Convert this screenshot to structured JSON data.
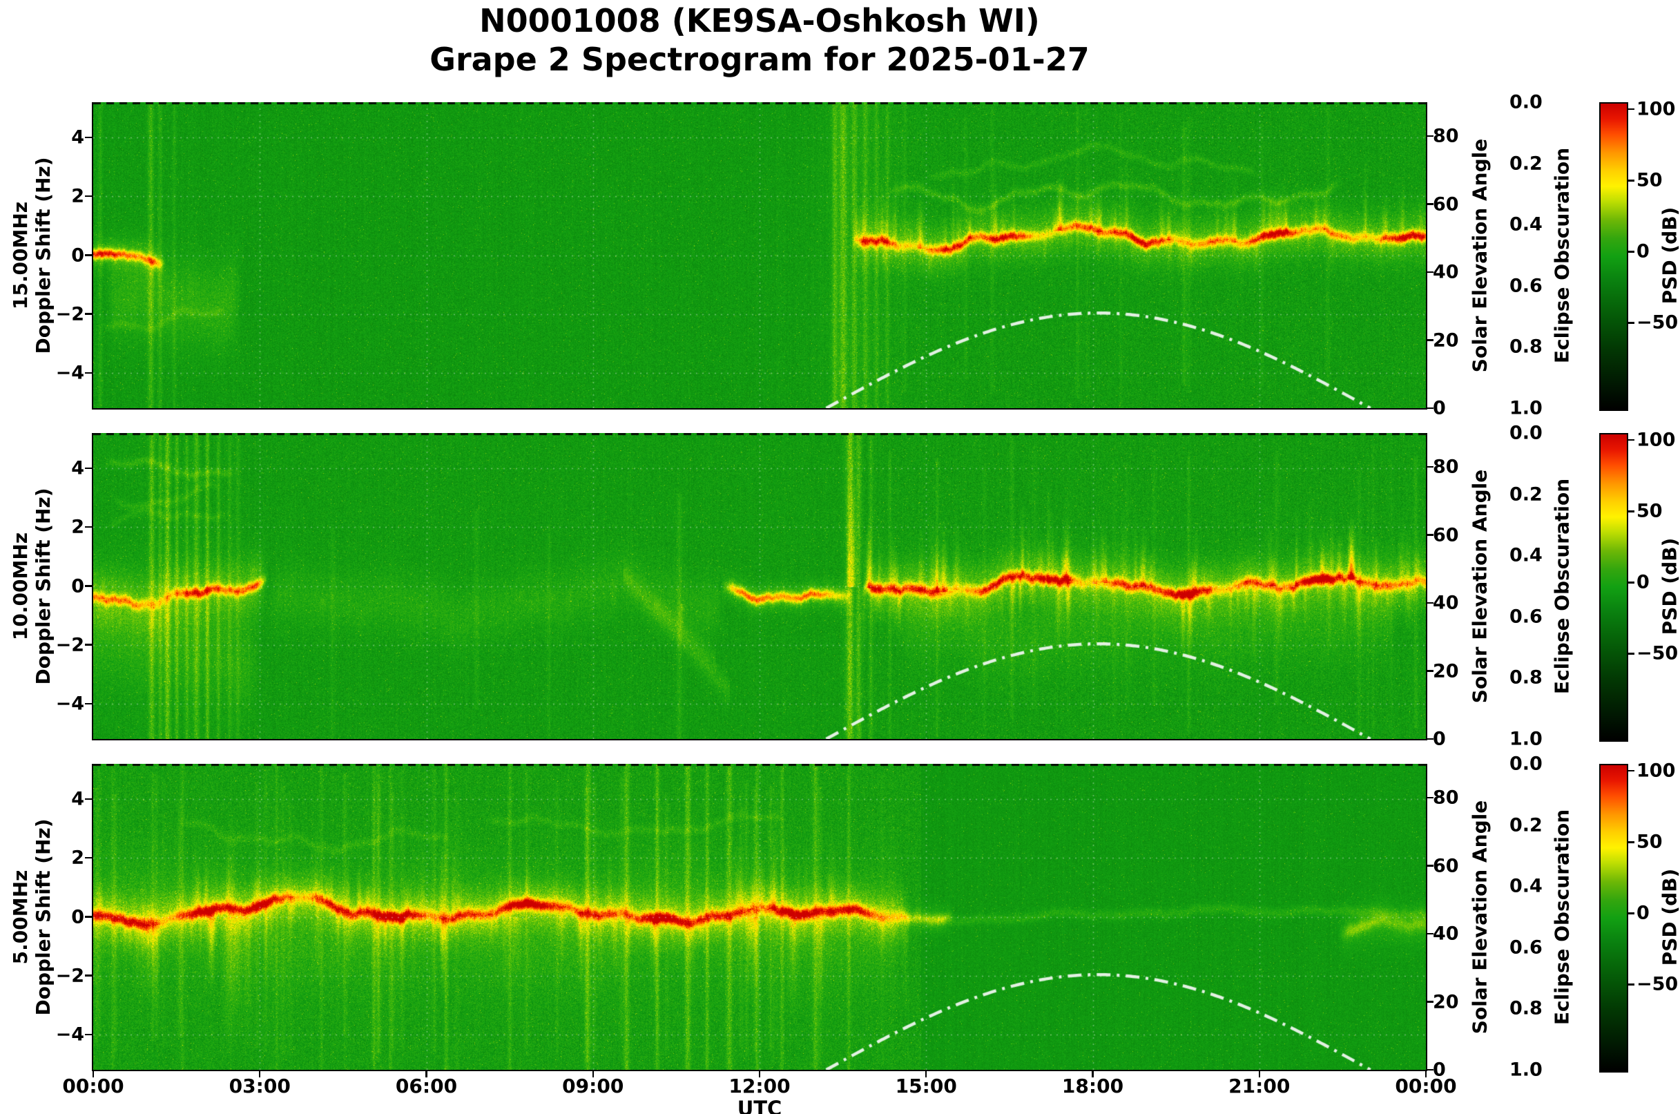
{
  "figure": {
    "title_line1": "N0001008 (KE9SA-Oshkosh WI)",
    "title_line2": "Grape 2 Spectrogram for 2025-01-27"
  },
  "chart_data": {
    "type": "heatmap",
    "title": "N0001008 (KE9SA-Oshkosh WI) Grape 2 Spectrogram for 2025-01-27",
    "station_node": "N0001008",
    "callsign": "KE9SA",
    "location": "Oshkosh WI",
    "date": "2025-01-27",
    "x_axis": {
      "label": "UTC",
      "tick_hours": [
        0,
        3,
        6,
        9,
        12,
        15,
        18,
        21,
        24
      ],
      "tick_labels": [
        "00:00",
        "03:00",
        "06:00",
        "09:00",
        "12:00",
        "15:00",
        "18:00",
        "21:00",
        "00:00"
      ],
      "range_hours": [
        0,
        24
      ]
    },
    "doppler_axis": {
      "label": "Doppler Shift (Hz)",
      "tick_values": [
        4,
        2,
        0,
        -2,
        -4
      ],
      "tick_labels": [
        "4",
        "2",
        "0",
        "−2",
        "−4"
      ],
      "range": [
        -5.2,
        5.2
      ]
    },
    "solar_axis": {
      "label": "Solar Elevation Angle",
      "tick_values": [
        0,
        20,
        40,
        60,
        80
      ],
      "tick_labels": [
        "0",
        "20",
        "40",
        "60",
        "80"
      ],
      "range": [
        0,
        90
      ]
    },
    "eclipse_axis": {
      "label": "Eclipse Obscuration",
      "tick_values": [
        0,
        0.2,
        0.4,
        0.6,
        0.8,
        1.0
      ],
      "tick_labels": [
        "0.0",
        "0.2",
        "0.4",
        "0.6",
        "0.8",
        "1.0"
      ],
      "range": [
        0,
        1
      ]
    },
    "colorbar": {
      "label": "PSD (dB)",
      "tick_values": [
        100,
        50,
        0,
        -50
      ],
      "tick_labels": [
        "100",
        "50",
        "0",
        "−50"
      ],
      "vmin": -110,
      "vmax": 105
    },
    "solar_curve": {
      "rise_utc": 13.2,
      "set_utc": 23.0,
      "peak_elevation_deg": 28,
      "style": "white dash-dot"
    },
    "colors": {
      "background_green": "#12a012",
      "signal_yellow": "#fff200",
      "signal_hot": "#cc0000",
      "solar_curve": "#eef6ee",
      "grid": "#ffffff"
    },
    "panels": [
      {
        "label": "15.00MHz",
        "seed": 101,
        "features": {
          "ambient": [
            {
              "t0": 0,
              "t1": 13.5,
              "base": -6,
              "noise": 8
            },
            {
              "t0": 13.5,
              "t1": 24,
              "base": -5,
              "noise": 9.5
            }
          ],
          "segments": [
            {
              "t0": 0,
              "t1": 1.3,
              "center": -0.15,
              "sigma": 0.35,
              "amp": 20,
              "core": 58,
              "coreSigma": 0.11,
              "wander": 0.3
            },
            {
              "t0": 0.2,
              "t1": 2.7,
              "center": -1.2,
              "sigma": 1.0,
              "amp": 15,
              "wander": 0.8
            },
            {
              "t0": 13.65,
              "t1": 24,
              "center": 0.35,
              "sigma": 0.55,
              "amp": 26,
              "core": 60,
              "coreSigma": 0.12,
              "wander": 0.3,
              "spikes": {
                "upD": 5,
                "upAmp": 24,
                "upLen": 2.2,
                "downD": 2,
                "downAmp": 16,
                "downLen": 1.4
              }
            }
          ],
          "traces": [
            {
              "t0": 14.3,
              "t1": 22.5,
              "center": 2.1,
              "sigma": 0.1,
              "amp": 16,
              "wander": 0.6
            },
            {
              "t0": 15.0,
              "t1": 21.0,
              "center": 3.1,
              "sigma": 0.09,
              "amp": 12,
              "wander": 0.5
            },
            {
              "t0": 0.1,
              "t1": 2.4,
              "center": -2.3,
              "sigma": 0.1,
              "amp": 10,
              "wander": 0.6
            }
          ],
          "vstreaks": [
            {
              "t": 0.12,
              "w": 2,
              "amp": 14
            },
            {
              "t": 1.03,
              "w": 3,
              "amp": 24
            },
            {
              "t": 1.2,
              "w": 2,
              "amp": 16
            },
            {
              "t": 1.45,
              "w": 2,
              "amp": 12
            },
            {
              "t": 13.35,
              "w": 3,
              "amp": 26
            },
            {
              "t": 13.5,
              "w": 4,
              "amp": 30
            },
            {
              "t": 13.7,
              "w": 3,
              "amp": 22
            },
            {
              "t": 13.9,
              "w": 3,
              "amp": 18
            },
            {
              "t": 14.1,
              "w": 2,
              "amp": 16
            },
            {
              "t": 14.3,
              "w": 2,
              "amp": 14
            },
            {
              "t": 13.75,
              "w": 40,
              "amp": 7
            }
          ],
          "streak_auto": {
            "t0": 14.5,
            "t1": 23.9,
            "perHour": 1.2,
            "aMin": 4,
            "aMax": 10,
            "w": 2
          }
        }
      },
      {
        "label": "10.00MHz",
        "seed": 202,
        "features": {
          "ambient": [
            {
              "t0": 0,
              "t1": 13.6,
              "base": -5,
              "noise": 8.5
            },
            {
              "t0": 13.6,
              "t1": 24,
              "base": -4.5,
              "noise": 9.5
            }
          ],
          "segments": [
            {
              "t0": 0,
              "t1": 3.15,
              "center": -0.35,
              "sigma": 0.7,
              "amp": 24,
              "core": 56,
              "coreSigma": 0.12,
              "wander": 0.5,
              "spikes": {
                "upD": 2,
                "upAmp": 14,
                "upLen": 1.2,
                "downD": 2,
                "downAmp": 14,
                "downLen": 1.5
              }
            },
            {
              "t0": 0,
              "t1": 3.0,
              "center": -1.9,
              "sigma": 1.1,
              "amp": 12,
              "wander": 0.6
            },
            {
              "t0": 3.1,
              "t1": 11.4,
              "center": -0.55,
              "sigma": 0.7,
              "amp": 10,
              "wander": 0.5,
              "spikes": {
                "upD": 0.5,
                "upAmp": 8,
                "upLen": 1.0,
                "downD": 1,
                "downAmp": 10,
                "downLen": 1.8
              }
            },
            {
              "t0": 11.3,
              "t1": 13.7,
              "center": -0.1,
              "sigma": 0.3,
              "amp": 22,
              "core": 52,
              "coreSigma": 0.11,
              "wander": 0.25
            },
            {
              "t0": 13.85,
              "t1": 24,
              "center": 0,
              "sigma": 0.6,
              "amp": 28,
              "core": 62,
              "coreSigma": 0.13,
              "wander": 0.3,
              "spikes": {
                "upD": 6,
                "upAmp": 26,
                "upLen": 2.6,
                "downD": 5,
                "downAmp": 20,
                "downLen": 2.2
              }
            },
            {
              "t0": 14.5,
              "t1": 23.5,
              "center": -1.4,
              "sigma": 0.9,
              "amp": 10,
              "wander": 0.5
            }
          ],
          "traces": [
            {
              "t0": 0.15,
              "t1": 2.6,
              "center": 3.9,
              "sigma": 0.1,
              "amp": 15,
              "wander": 0.5
            },
            {
              "t0": 0.3,
              "t1": 2.3,
              "center": 3.0,
              "sigma": 0.09,
              "amp": 11,
              "wander": 0.45
            },
            {
              "t0": 0.2,
              "t1": 2.5,
              "center": 2.2,
              "sigma": 0.09,
              "amp": 9,
              "wander": 0.4
            }
          ],
          "diags": [
            {
              "t0": 9.55,
              "t1": 11.45,
              "f0": 0.4,
              "f1": -3.6,
              "amp": 14,
              "sigma": 0.3
            },
            {
              "t0": 10.1,
              "t1": 11.2,
              "f0": -0.5,
              "f1": -2.5,
              "amp": 8,
              "sigma": 0.25
            }
          ],
          "vstreaks": [
            {
              "t": 1.05,
              "w": 3,
              "amp": 30
            },
            {
              "t": 1.2,
              "w": 2,
              "amp": 22
            },
            {
              "t": 1.33,
              "w": 3,
              "amp": 34
            },
            {
              "t": 1.5,
              "w": 2,
              "amp": 26
            },
            {
              "t": 1.68,
              "w": 2,
              "amp": 20
            },
            {
              "t": 1.85,
              "w": 3,
              "amp": 24
            },
            {
              "t": 2.05,
              "w": 2,
              "amp": 28
            },
            {
              "t": 2.25,
              "w": 2,
              "amp": 18
            },
            {
              "t": 2.45,
              "w": 2,
              "amp": 14
            },
            {
              "t": 2.6,
              "w": 2,
              "amp": 12
            },
            {
              "t": 13.62,
              "w": 4,
              "amp": 40
            },
            {
              "t": 13.78,
              "w": 3,
              "amp": 26
            },
            {
              "t": 14.0,
              "w": 2,
              "amp": 18
            },
            {
              "t": 4.3,
              "w": 2,
              "amp": 8,
              "y0": 0.3
            },
            {
              "t": 6.9,
              "w": 2,
              "amp": 10,
              "y0": 0.25,
              "y1": 0.9
            },
            {
              "t": 8.2,
              "w": 2,
              "amp": 8,
              "y0": 0.3
            },
            {
              "t": 10.55,
              "w": 3,
              "amp": 12,
              "y0": 0.2
            }
          ],
          "spikes_list": [
            {
              "t": 13.68,
              "f": 0,
              "dir": -1,
              "len": 4.4,
              "amp": 40,
              "w": 3
            },
            {
              "t": 13.6,
              "f": 0,
              "dir": -1,
              "len": 3.2,
              "amp": 26,
              "w": 2
            },
            {
              "t": 17.2,
              "f": 0,
              "dir": -1,
              "len": 3.6,
              "amp": 24,
              "w": 2
            },
            {
              "t": 20.9,
              "f": 0,
              "dir": 1,
              "len": 3.4,
              "amp": 20,
              "w": 2
            }
          ],
          "streak_auto": {
            "t0": 14,
            "t1": 24,
            "perHour": 1.5,
            "aMin": 4,
            "aMax": 12,
            "w": 2
          }
        }
      },
      {
        "label": "5.00MHz",
        "seed": 303,
        "features": {
          "ambient": [
            {
              "t0": 0,
              "t1": 14.9,
              "base": -2.5,
              "noise": 10.5
            },
            {
              "t0": 14.9,
              "t1": 24,
              "base": -6.5,
              "noise": 6.5
            }
          ],
          "segments": [
            {
              "t0": 0,
              "t1": 14.75,
              "center": 0,
              "sigma": 0.5,
              "amp": 30,
              "core": 62,
              "coreSigma": 0.13,
              "wander": 0.3,
              "spikes": {
                "upD": 3,
                "upAmp": 22,
                "upLen": 2.4,
                "downD": 3.5,
                "downAmp": 22,
                "downLen": 2.8
              }
            },
            {
              "t0": 0,
              "t1": 14.6,
              "center": -0.3,
              "sigma": 1.3,
              "amp": 12,
              "wander": 0.4
            },
            {
              "t0": 14.6,
              "t1": 15.5,
              "center": 0,
              "sigma": 0.3,
              "amp": 16,
              "core": 24,
              "coreSigma": 0.12,
              "wander": 0.15
            },
            {
              "t0": 14.9,
              "t1": 24,
              "center": -0.05,
              "sigma": 0.12,
              "amp": 13,
              "wander": 0.05
            },
            {
              "t0": 22.4,
              "t1": 24,
              "center": -0.4,
              "sigma": 0.45,
              "amp": 14,
              "core": 16,
              "coreSigma": 0.15,
              "wander": 0.3
            }
          ],
          "traces": [
            {
              "t0": 1.5,
              "t1": 6.5,
              "center": 2.8,
              "sigma": 0.1,
              "amp": 10,
              "wander": 0.5
            },
            {
              "t0": 7.0,
              "t1": 12.5,
              "center": 3.1,
              "sigma": 0.1,
              "amp": 10,
              "wander": 0.5
            }
          ],
          "vstreaks": [
            {
              "t": 0.35,
              "w": 2,
              "amp": 12
            },
            {
              "t": 1.6,
              "w": 2,
              "amp": 12
            },
            {
              "t": 3.3,
              "w": 2,
              "amp": 12
            },
            {
              "t": 4.1,
              "w": 2,
              "amp": 12
            },
            {
              "t": 5.05,
              "w": 2,
              "amp": 16
            },
            {
              "t": 5.35,
              "w": 2,
              "amp": 14
            },
            {
              "t": 6.35,
              "w": 2,
              "amp": 18
            },
            {
              "t": 7.5,
              "w": 2,
              "amp": 16
            },
            {
              "t": 8.9,
              "w": 3,
              "amp": 20
            },
            {
              "t": 9.6,
              "w": 3,
              "amp": 24
            },
            {
              "t": 10.15,
              "w": 2,
              "amp": 22
            },
            {
              "t": 10.7,
              "w": 3,
              "amp": 26
            },
            {
              "t": 11.05,
              "w": 2,
              "amp": 22
            },
            {
              "t": 11.45,
              "w": 3,
              "amp": 24
            },
            {
              "t": 11.95,
              "w": 2,
              "amp": 20
            },
            {
              "t": 12.4,
              "w": 2,
              "amp": 18
            },
            {
              "t": 13.0,
              "w": 3,
              "amp": 22
            },
            {
              "t": 13.6,
              "w": 2,
              "amp": 16
            }
          ],
          "spikes_list": [
            {
              "t": 0.9,
              "f": 0,
              "dir": 1,
              "len": 3.2,
              "amp": 18,
              "w": 4
            },
            {
              "t": 2.45,
              "f": 0,
              "dir": 1,
              "len": 5.0,
              "amp": 26,
              "w": 6
            },
            {
              "t": 2.6,
              "f": 0,
              "dir": 1,
              "len": 4.2,
              "amp": 22,
              "w": 5
            },
            {
              "t": 2.78,
              "f": 0,
              "dir": 1,
              "len": 5.0,
              "amp": 20,
              "w": 4
            },
            {
              "t": 2.5,
              "f": 0,
              "dir": -1,
              "len": 3.5,
              "amp": 18,
              "w": 4
            },
            {
              "t": 4.6,
              "f": 0,
              "dir": 1,
              "len": 2.2,
              "amp": 12,
              "w": 3
            },
            {
              "t": 6.3,
              "f": 0,
              "dir": 1,
              "len": 2.4,
              "amp": 14,
              "w": 3
            },
            {
              "t": 7.6,
              "f": 0,
              "dir": 1,
              "len": 2.8,
              "amp": 16,
              "w": 4
            },
            {
              "t": 9.3,
              "f": 0,
              "dir": -1,
              "len": 2.6,
              "amp": 18,
              "w": 3
            },
            {
              "t": 11.9,
              "f": 0,
              "dir": 1,
              "len": 3.0,
              "amp": 16,
              "w": 4
            },
            {
              "t": 12.6,
              "f": 0,
              "dir": 1,
              "len": 4.0,
              "amp": 18,
              "w": 5
            },
            {
              "t": 13.1,
              "f": 0,
              "dir": 1,
              "len": 3.4,
              "amp": 18,
              "w": 4
            },
            {
              "t": 13.3,
              "f": 0,
              "dir": -1,
              "len": 3.0,
              "amp": 20,
              "w": 4
            }
          ],
          "streak_auto": {
            "t0": 0,
            "t1": 14.5,
            "perHour": 2.5,
            "aMin": 4,
            "aMax": 12,
            "w": 2
          }
        }
      }
    ]
  }
}
